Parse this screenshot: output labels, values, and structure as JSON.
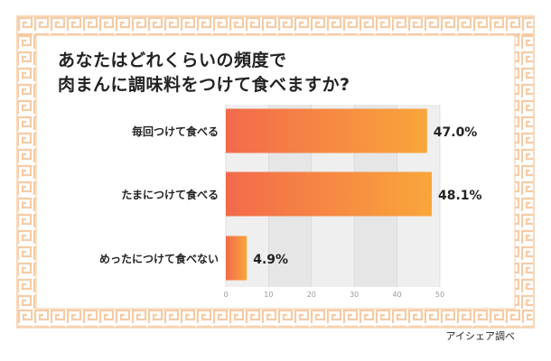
{
  "question": {
    "line1": "あなたはどれくらいの頻度で",
    "line2": "肉まんに調味料をつけて食べますか?"
  },
  "source": "アイシェア調べ",
  "colors": {
    "frame": "#f6cba4",
    "bar_start": "#f36a4b",
    "bar_end": "#f9a63b",
    "plot_band_a": "#efefef",
    "plot_band_b": "#e6e6e6"
  },
  "chart_data": {
    "type": "bar",
    "orientation": "horizontal",
    "categories": [
      "毎回つけて食べる",
      "たまにつけて食べる",
      "めったにつけて食べない"
    ],
    "values": [
      47.0,
      48.1,
      4.9
    ],
    "value_labels": [
      "47.0%",
      "48.1%",
      "4.9%"
    ],
    "xlim": [
      0,
      50
    ],
    "ticks": [
      0,
      10,
      20,
      30,
      40,
      50
    ],
    "title": "あなたはどれくらいの頻度で 肉まんに調味料をつけて食べますか?",
    "xlabel": "",
    "ylabel": "",
    "grid": true
  }
}
